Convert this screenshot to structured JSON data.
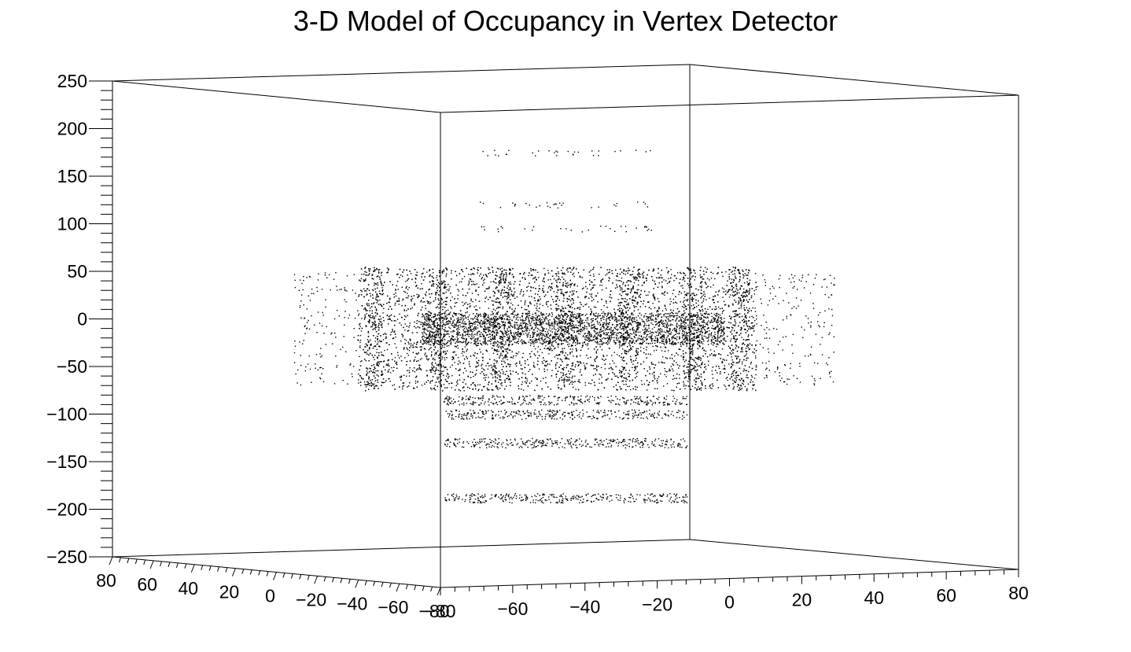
{
  "chart_data": {
    "type": "scatter",
    "title": "3-D Model of Occupancy in Vertex Detector",
    "projection": "3d-box",
    "axes": {
      "z": {
        "range": [
          -250,
          250
        ],
        "tick_labels": [
          "250",
          "200",
          "150",
          "100",
          "50",
          "0",
          "−50",
          "−100",
          "−150",
          "−200",
          "−250"
        ]
      },
      "x_left": {
        "range": [
          -80,
          80
        ],
        "tick_labels": [
          "80",
          "60",
          "40",
          "20",
          "0",
          "−20",
          "−40",
          "−60",
          "−80"
        ]
      },
      "x_right": {
        "range": [
          -80,
          80
        ],
        "tick_labels": [
          "−80",
          "−60",
          "−40",
          "−20",
          "0",
          "20",
          "40",
          "60",
          "80"
        ]
      }
    },
    "grid": false,
    "legend": "none",
    "colors": {
      "points": "#000000",
      "axes": "#000000"
    },
    "series": [
      {
        "description_structure": "barrel",
        "components": [
          {
            "kind": "barrel",
            "x_range": [
              -65,
              60
            ],
            "z_range": [
              -75,
              55
            ],
            "density": "high"
          },
          {
            "kind": "barrel-outer",
            "x_range": [
              -85,
              85
            ],
            "z_range": [
              -70,
              50
            ],
            "density": "low"
          }
        ]
      },
      {
        "description_structure": "disks",
        "components": [
          {
            "kind": "disk",
            "z": -85
          },
          {
            "kind": "disk",
            "z": -100
          },
          {
            "kind": "disk",
            "z": -130
          },
          {
            "kind": "disk",
            "z": -188
          },
          {
            "kind": "disk-sparse",
            "z": 95
          },
          {
            "kind": "disk-sparse",
            "z": 120
          },
          {
            "kind": "disk-sparse",
            "z": 175
          }
        ]
      }
    ]
  }
}
